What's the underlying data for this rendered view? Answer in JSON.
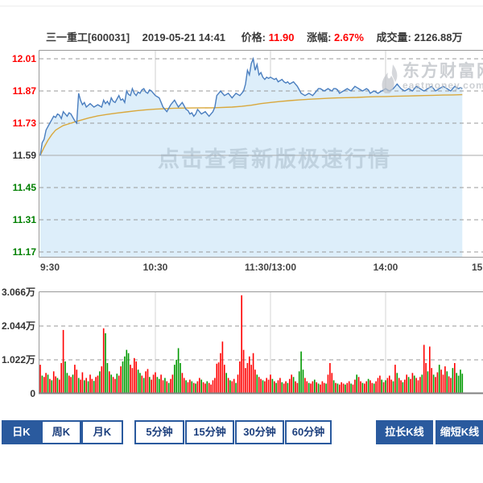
{
  "header": {
    "stock_name": "三一重工[600031]",
    "datetime": "2019-05-21 14:41",
    "price_label": "价格:",
    "price_value": "11.90",
    "change_label": "涨幅:",
    "change_value": "2.67%",
    "volume_label": "成交量:",
    "volume_value": "2126.88万"
  },
  "watermarks": {
    "center_text": "点击查看新版极速行情",
    "logo_cn": "东方财富网",
    "logo_en": "eastmoney.com"
  },
  "toolbar": {
    "period_buttons": [
      {
        "label": "日K",
        "selected": true
      },
      {
        "label": "周K",
        "selected": false
      },
      {
        "label": "月K",
        "selected": false
      },
      {
        "label": "5分钟",
        "selected": false
      },
      {
        "label": "15分钟",
        "selected": false
      },
      {
        "label": "30分钟",
        "selected": false
      },
      {
        "label": "60分钟",
        "selected": false
      }
    ],
    "stretch_button": "拉长K线",
    "shrink_button": "缩短K线"
  },
  "chart_data": {
    "colors": {
      "up": "#ff0000",
      "down": "#009900",
      "price_line": "#4a7ebf",
      "avg_line": "#d9a83c",
      "area_fill": "#ddeefa",
      "grid": "#999999",
      "prev_close_line": "#aaaaaa"
    },
    "price_chart": {
      "type": "line",
      "x_ticks": [
        "9:30",
        "10:30",
        "11:30/13:00",
        "14:00",
        "15"
      ],
      "x_range_minutes": [
        0,
        240
      ],
      "y_range": [
        11.17,
        12.01
      ],
      "prev_close": 11.59,
      "y_ticks": [
        {
          "label": "12.01",
          "color": "#ff0000"
        },
        {
          "label": "11.87",
          "color": "#ff0000"
        },
        {
          "label": "11.73",
          "color": "#ff0000"
        },
        {
          "label": "11.59",
          "color": "#333333"
        },
        {
          "label": "11.45",
          "color": "#008000"
        },
        {
          "label": "11.31",
          "color": "#008000"
        },
        {
          "label": "11.17",
          "color": "#008000"
        }
      ],
      "price_series": [
        [
          0,
          11.59
        ],
        [
          1,
          11.645
        ],
        [
          2,
          11.66
        ],
        [
          3,
          11.7
        ],
        [
          4,
          11.715
        ],
        [
          5,
          11.73
        ],
        [
          6,
          11.745
        ],
        [
          7,
          11.76
        ],
        [
          8,
          11.755
        ],
        [
          9,
          11.77
        ],
        [
          10,
          11.765
        ],
        [
          11,
          11.75
        ],
        [
          12,
          11.78
        ],
        [
          13,
          11.77
        ],
        [
          14,
          11.76
        ],
        [
          15,
          11.775
        ],
        [
          16,
          11.77
        ],
        [
          17,
          11.755
        ],
        [
          18,
          11.74
        ],
        [
          19,
          11.73
        ],
        [
          20,
          11.86
        ],
        [
          21,
          11.83
        ],
        [
          22,
          11.81
        ],
        [
          23,
          11.82
        ],
        [
          24,
          11.8
        ],
        [
          26,
          11.815
        ],
        [
          28,
          11.8
        ],
        [
          30,
          11.81
        ],
        [
          32,
          11.8
        ],
        [
          33,
          11.83
        ],
        [
          34,
          11.815
        ],
        [
          35,
          11.825
        ],
        [
          36,
          11.81
        ],
        [
          37,
          11.84
        ],
        [
          38,
          11.825
        ],
        [
          39,
          11.82
        ],
        [
          40,
          11.835
        ],
        [
          41,
          11.85
        ],
        [
          42,
          11.83
        ],
        [
          43,
          11.835
        ],
        [
          44,
          11.82
        ],
        [
          45,
          11.87
        ],
        [
          46,
          11.855
        ],
        [
          47,
          11.85
        ],
        [
          48,
          11.88
        ],
        [
          49,
          11.86
        ],
        [
          50,
          11.85
        ],
        [
          51,
          11.865
        ],
        [
          52,
          11.86
        ],
        [
          53,
          11.875
        ],
        [
          54,
          11.88
        ],
        [
          55,
          11.865
        ],
        [
          56,
          11.86
        ],
        [
          57,
          11.875
        ],
        [
          58,
          11.87
        ],
        [
          59,
          11.86
        ],
        [
          60,
          11.85
        ],
        [
          61,
          11.845
        ],
        [
          62,
          11.84
        ],
        [
          63,
          11.82
        ],
        [
          64,
          11.8
        ],
        [
          65,
          11.79
        ],
        [
          66,
          11.78
        ],
        [
          67,
          11.795
        ],
        [
          68,
          11.81
        ],
        [
          69,
          11.82
        ],
        [
          70,
          11.83
        ],
        [
          71,
          11.815
        ],
        [
          72,
          11.8
        ],
        [
          73,
          11.81
        ],
        [
          74,
          11.82
        ],
        [
          75,
          11.805
        ],
        [
          76,
          11.79
        ],
        [
          77,
          11.785
        ],
        [
          78,
          11.77
        ],
        [
          79,
          11.775
        ],
        [
          80,
          11.76
        ],
        [
          81,
          11.77
        ],
        [
          82,
          11.79
        ],
        [
          83,
          11.78
        ],
        [
          84,
          11.77
        ],
        [
          85,
          11.775
        ],
        [
          86,
          11.78
        ],
        [
          87,
          11.77
        ],
        [
          88,
          11.76
        ],
        [
          89,
          11.77
        ],
        [
          90,
          11.78
        ],
        [
          91,
          11.8
        ],
        [
          92,
          11.85
        ],
        [
          93,
          11.86
        ],
        [
          94,
          11.87
        ],
        [
          95,
          11.86
        ],
        [
          96,
          11.85
        ],
        [
          97,
          11.855
        ],
        [
          98,
          11.86
        ],
        [
          99,
          11.85
        ],
        [
          100,
          11.84
        ],
        [
          101,
          11.85
        ],
        [
          102,
          11.86
        ],
        [
          103,
          11.855
        ],
        [
          104,
          11.85
        ],
        [
          105,
          11.86
        ],
        [
          106,
          11.87
        ],
        [
          107,
          11.9
        ],
        [
          108,
          11.96
        ],
        [
          109,
          11.94
        ],
        [
          110,
          11.99
        ],
        [
          111,
          12.01
        ],
        [
          112,
          11.96
        ],
        [
          113,
          11.985
        ],
        [
          114,
          11.94
        ],
        [
          115,
          11.95
        ],
        [
          116,
          11.93
        ],
        [
          117,
          11.92
        ],
        [
          118,
          11.93
        ],
        [
          119,
          11.925
        ],
        [
          120,
          11.93
        ],
        [
          121,
          11.925
        ],
        [
          122,
          11.92
        ],
        [
          123,
          11.925
        ],
        [
          124,
          11.91
        ],
        [
          125,
          11.915
        ],
        [
          126,
          11.92
        ],
        [
          127,
          11.91
        ],
        [
          128,
          11.905
        ],
        [
          129,
          11.91
        ],
        [
          130,
          11.9
        ],
        [
          131,
          11.905
        ],
        [
          132,
          11.91
        ],
        [
          133,
          11.9
        ],
        [
          134,
          11.89
        ],
        [
          135,
          11.875
        ],
        [
          136,
          11.86
        ],
        [
          137,
          11.855
        ],
        [
          138,
          11.85
        ],
        [
          139,
          11.855
        ],
        [
          140,
          11.86
        ],
        [
          141,
          11.855
        ],
        [
          142,
          11.85
        ],
        [
          143,
          11.86
        ],
        [
          144,
          11.87
        ],
        [
          145,
          11.88
        ],
        [
          146,
          11.88
        ],
        [
          147,
          11.875
        ],
        [
          148,
          11.87
        ],
        [
          149,
          11.875
        ],
        [
          150,
          11.88
        ],
        [
          151,
          11.875
        ],
        [
          152,
          11.87
        ],
        [
          153,
          11.88
        ],
        [
          154,
          11.88
        ],
        [
          155,
          11.875
        ],
        [
          156,
          11.86
        ],
        [
          157,
          11.865
        ],
        [
          158,
          11.87
        ],
        [
          159,
          11.875
        ],
        [
          160,
          11.88
        ],
        [
          161,
          11.875
        ],
        [
          162,
          11.87
        ],
        [
          163,
          11.88
        ],
        [
          164,
          11.89
        ],
        [
          165,
          11.885
        ],
        [
          166,
          11.88
        ],
        [
          167,
          11.875
        ],
        [
          168,
          11.87
        ],
        [
          169,
          11.875
        ],
        [
          170,
          11.88
        ],
        [
          171,
          11.875
        ],
        [
          172,
          11.86
        ],
        [
          173,
          11.865
        ],
        [
          174,
          11.87
        ],
        [
          175,
          11.865
        ],
        [
          176,
          11.86
        ],
        [
          177,
          11.865
        ],
        [
          178,
          11.87
        ],
        [
          179,
          11.875
        ],
        [
          180,
          11.88
        ],
        [
          181,
          11.875
        ],
        [
          182,
          11.87
        ],
        [
          183,
          11.875
        ],
        [
          184,
          11.88
        ],
        [
          185,
          11.89
        ],
        [
          186,
          11.9
        ],
        [
          187,
          11.89
        ],
        [
          188,
          11.88
        ],
        [
          189,
          11.875
        ],
        [
          190,
          11.87
        ],
        [
          191,
          11.875
        ],
        [
          192,
          11.88
        ],
        [
          193,
          11.875
        ],
        [
          194,
          11.87
        ],
        [
          195,
          11.88
        ],
        [
          196,
          11.89
        ],
        [
          197,
          11.885
        ],
        [
          198,
          11.88
        ],
        [
          199,
          11.875
        ],
        [
          200,
          11.87
        ],
        [
          201,
          11.875
        ],
        [
          202,
          11.88
        ],
        [
          203,
          11.885
        ],
        [
          204,
          11.89
        ],
        [
          205,
          11.88
        ],
        [
          206,
          11.87
        ],
        [
          207,
          11.875
        ],
        [
          208,
          11.88
        ],
        [
          209,
          11.885
        ],
        [
          210,
          11.89
        ],
        [
          211,
          11.885
        ],
        [
          212,
          11.88
        ],
        [
          213,
          11.875
        ],
        [
          214,
          11.87
        ],
        [
          215,
          11.88
        ],
        [
          216,
          11.89
        ],
        [
          217,
          11.885
        ],
        [
          218,
          11.88
        ],
        [
          219,
          11.885
        ],
        [
          220,
          11.88
        ]
      ],
      "avg_series": [
        [
          0,
          11.59
        ],
        [
          2,
          11.625
        ],
        [
          4,
          11.655
        ],
        [
          6,
          11.68
        ],
        [
          8,
          11.7
        ],
        [
          10,
          11.71
        ],
        [
          12,
          11.72
        ],
        [
          16,
          11.73
        ],
        [
          20,
          11.74
        ],
        [
          25,
          11.752
        ],
        [
          30,
          11.762
        ],
        [
          35,
          11.768
        ],
        [
          40,
          11.774
        ],
        [
          45,
          11.779
        ],
        [
          50,
          11.784
        ],
        [
          55,
          11.788
        ],
        [
          60,
          11.791
        ],
        [
          70,
          11.795
        ],
        [
          80,
          11.796
        ],
        [
          90,
          11.797
        ],
        [
          100,
          11.8
        ],
        [
          105,
          11.803
        ],
        [
          110,
          11.808
        ],
        [
          115,
          11.815
        ],
        [
          120,
          11.82
        ],
        [
          125,
          11.824
        ],
        [
          130,
          11.828
        ],
        [
          135,
          11.831
        ],
        [
          140,
          11.834
        ],
        [
          145,
          11.836
        ],
        [
          150,
          11.838
        ],
        [
          155,
          11.84
        ],
        [
          160,
          11.841
        ],
        [
          165,
          11.842
        ],
        [
          170,
          11.844
        ],
        [
          175,
          11.845
        ],
        [
          180,
          11.846
        ],
        [
          185,
          11.847
        ],
        [
          190,
          11.848
        ],
        [
          195,
          11.849
        ],
        [
          200,
          11.85
        ],
        [
          205,
          11.851
        ],
        [
          210,
          11.852
        ],
        [
          215,
          11.853
        ],
        [
          220,
          11.854
        ]
      ]
    },
    "volume_chart": {
      "type": "bar",
      "unit": "万",
      "y_ticks": [
        "3.066万",
        "2.044万",
        "1.022万",
        "0"
      ],
      "y_max": 3.066,
      "values": [
        0.85,
        0.52,
        0.48,
        0.6,
        0.55,
        0.42,
        0.38,
        0.65,
        0.5,
        0.45,
        0.4,
        0.9,
        1.9,
        0.95,
        0.6,
        0.52,
        0.48,
        0.55,
        0.85,
        0.7,
        0.45,
        0.4,
        0.62,
        0.38,
        0.45,
        0.35,
        0.55,
        0.42,
        0.36,
        0.48,
        0.52,
        0.65,
        0.8,
        1.95,
        1.8,
        0.9,
        0.65,
        0.55,
        0.48,
        0.42,
        0.58,
        0.52,
        0.8,
        0.95,
        1.1,
        1.3,
        1.2,
        0.85,
        0.75,
        1.05,
        0.95,
        0.7,
        0.6,
        0.52,
        0.45,
        0.65,
        0.72,
        0.48,
        0.4,
        0.55,
        0.62,
        0.48,
        0.42,
        0.55,
        0.38,
        0.45,
        0.35,
        0.3,
        0.42,
        0.55,
        0.85,
        1.0,
        1.35,
        0.9,
        0.6,
        0.45,
        0.38,
        0.32,
        0.4,
        0.35,
        0.3,
        0.28,
        0.35,
        0.45,
        0.4,
        0.32,
        0.28,
        0.35,
        0.3,
        0.25,
        0.38,
        0.45,
        0.88,
        0.92,
        1.2,
        1.55,
        0.85,
        0.6,
        0.45,
        0.38,
        0.35,
        0.42,
        0.3,
        0.55,
        0.95,
        2.95,
        1.3,
        0.75,
        0.9,
        1.1,
        0.85,
        1.2,
        0.7,
        0.55,
        0.48,
        0.42,
        0.38,
        0.35,
        0.45,
        0.4,
        0.55,
        0.42,
        0.35,
        0.3,
        0.38,
        0.45,
        0.32,
        0.28,
        0.35,
        0.3,
        0.42,
        0.55,
        0.48,
        0.35,
        0.3,
        0.65,
        1.25,
        0.7,
        0.45,
        0.35,
        0.3,
        0.28,
        0.35,
        0.4,
        0.32,
        0.28,
        0.25,
        0.35,
        0.3,
        0.28,
        0.55,
        0.9,
        0.6,
        0.38,
        0.3,
        0.28,
        0.25,
        0.32,
        0.28,
        0.25,
        0.3,
        0.35,
        0.28,
        0.25,
        0.4,
        0.55,
        0.48,
        0.35,
        0.3,
        0.28,
        0.35,
        0.42,
        0.38,
        0.3,
        0.28,
        0.35,
        0.45,
        0.52,
        0.4,
        0.32,
        0.38,
        0.45,
        0.52,
        0.4,
        0.35,
        0.85,
        0.6,
        0.45,
        0.38,
        0.32,
        0.4,
        0.55,
        0.48,
        0.42,
        0.6,
        0.52,
        0.45,
        0.38,
        0.48,
        0.55,
        1.45,
        0.9,
        0.65,
        1.4,
        0.75,
        0.55,
        0.48,
        0.62,
        0.85,
        0.7,
        0.55,
        0.8,
        0.65,
        0.5,
        0.45,
        0.75,
        0.9,
        0.6,
        0.52,
        0.7,
        0.58
      ],
      "colors": "rgrrgrgrrgrrrggrrgrrgrrgrgrrgrrgrrggrgrrgrrggggrrrrggrgrrgrrrggrrgrgrrggggrrgrrgrgrrgrrgrrrrrrrrrgrgrrgrrrrrrrrrrgrrgrrrrgrgrrgrrgrrgrrgggrrgrrgrgrrrgrrrgrgrrrgrrgrrgrrgrrgrrgrrrgrgrrrgrgrrgrrgrrgrrrgrrgrrgrrgrrrgrrgr"
    }
  }
}
